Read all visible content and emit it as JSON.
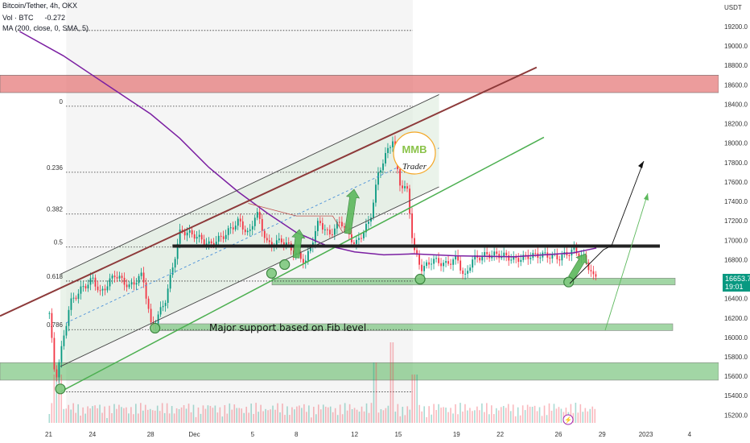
{
  "legend": {
    "symbol": "Bitcoin/Tether, 4h, OKX",
    "volume": "Vol · BTC",
    "volume_value": "-0.272",
    "ma": "MA (200, close, 0, SMA, 5)"
  },
  "price_tag": {
    "price": "16653.7",
    "countdown": "19:01"
  },
  "colors": {
    "up": "#089981",
    "down": "#f23645",
    "ma": "#7b1fa2",
    "channel": "#4caf50",
    "resistance": "#8d3a3a",
    "zone_red": "#e57373",
    "zone_green": "#66bb6a"
  },
  "logo": {
    "top": "MMB",
    "bottom": "Trader"
  },
  "chart_data": {
    "type": "candlestick",
    "title": "Bitcoin/Tether, 4h, OKX",
    "y_axis_unit": "USDT",
    "ylim": [
      15150,
      19350
    ],
    "y_ticks": [
      19200.0,
      19000.0,
      18800.0,
      18600.0,
      18400.0,
      18200.0,
      18000.0,
      17800.0,
      17600.0,
      17400.0,
      17200.0,
      17000.0,
      16800.0,
      16600.0,
      16400.0,
      16200.0,
      16000.0,
      15800.0,
      15600.0,
      15400.0,
      15200.0
    ],
    "x_ticks": [
      {
        "label": "21",
        "day": 0
      },
      {
        "label": "24",
        "day": 3
      },
      {
        "label": "28",
        "day": 7
      },
      {
        "label": "Dec",
        "day": 10
      },
      {
        "label": "5",
        "day": 14
      },
      {
        "label": "8",
        "day": 17
      },
      {
        "label": "12",
        "day": 21
      },
      {
        "label": "15",
        "day": 24
      },
      {
        "label": "19",
        "day": 28
      },
      {
        "label": "22",
        "day": 31
      },
      {
        "label": "26",
        "day": 35
      },
      {
        "label": "29",
        "day": 38
      },
      {
        "label": "2023",
        "day": 41
      },
      {
        "label": "4",
        "day": 44
      }
    ],
    "price_path": [
      [
        0,
        16250
      ],
      [
        0.4,
        15550
      ],
      [
        0.8,
        15850
      ],
      [
        1.4,
        16350
      ],
      [
        2.2,
        16500
      ],
      [
        3,
        16600
      ],
      [
        3.5,
        16450
      ],
      [
        4.5,
        16650
      ],
      [
        5.5,
        16520
      ],
      [
        6.4,
        16650
      ],
      [
        7,
        16100
      ],
      [
        7.4,
        16200
      ],
      [
        8,
        16400
      ],
      [
        9,
        17100
      ],
      [
        10,
        17050
      ],
      [
        11,
        16950
      ],
      [
        12,
        17050
      ],
      [
        13,
        17200
      ],
      [
        13.7,
        17050
      ],
      [
        14.2,
        17300
      ],
      [
        15,
        16950
      ],
      [
        16,
        17000
      ],
      [
        17,
        16850
      ],
      [
        17.6,
        16780
      ],
      [
        18.5,
        17200
      ],
      [
        19.2,
        17050
      ],
      [
        20,
        17200
      ],
      [
        21,
        16950
      ],
      [
        22,
        17200
      ],
      [
        22.6,
        17700
      ],
      [
        23.3,
        17950
      ],
      [
        23.6,
        18050
      ],
      [
        24,
        17600
      ],
      [
        24.6,
        17500
      ],
      [
        25,
        16900
      ],
      [
        25.6,
        16700
      ],
      [
        26.3,
        16800
      ],
      [
        27.2,
        16750
      ],
      [
        28,
        16820
      ],
      [
        28.5,
        16600
      ],
      [
        29,
        16800
      ],
      [
        30,
        16850
      ],
      [
        31,
        16850
      ],
      [
        32,
        16800
      ],
      [
        33,
        16840
      ],
      [
        34,
        16850
      ],
      [
        35,
        16820
      ],
      [
        36,
        16900
      ],
      [
        36.8,
        16800
      ],
      [
        37.4,
        16600
      ],
      [
        37.6,
        16654
      ]
    ],
    "ma200": [
      [
        -2,
        19150
      ],
      [
        1,
        18900
      ],
      [
        4,
        18600
      ],
      [
        7,
        18300
      ],
      [
        9,
        18050
      ],
      [
        11,
        17750
      ],
      [
        13,
        17500
      ],
      [
        15,
        17280
      ],
      [
        17,
        17080
      ],
      [
        19,
        16950
      ],
      [
        21,
        16880
      ],
      [
        23,
        16850
      ],
      [
        25,
        16860
      ],
      [
        28,
        16840
      ],
      [
        32,
        16830
      ],
      [
        36,
        16870
      ],
      [
        37.6,
        16920
      ]
    ],
    "fib_levels": [
      {
        "label": "0",
        "price": 18380
      },
      {
        "label": "0.236",
        "price": 17700
      },
      {
        "label": "0.382",
        "price": 17270
      },
      {
        "label": "0.5",
        "price": 16930
      },
      {
        "label": "0.618",
        "price": 16580
      },
      {
        "label": "0.786",
        "price": 16080
      },
      {
        "label": "",
        "price": 15440
      },
      {
        "label": "",
        "price": 19160
      }
    ],
    "zones": [
      {
        "color": "red",
        "from": 18520,
        "to": 18700
      },
      {
        "color": "green",
        "from": 15560,
        "to": 15740
      },
      {
        "color": "green",
        "from": 16070,
        "to": 16140
      },
      {
        "color": "green",
        "from": 16540,
        "to": 16610
      }
    ],
    "key_level": 16940,
    "annotation": "Major support based on Fib level"
  }
}
